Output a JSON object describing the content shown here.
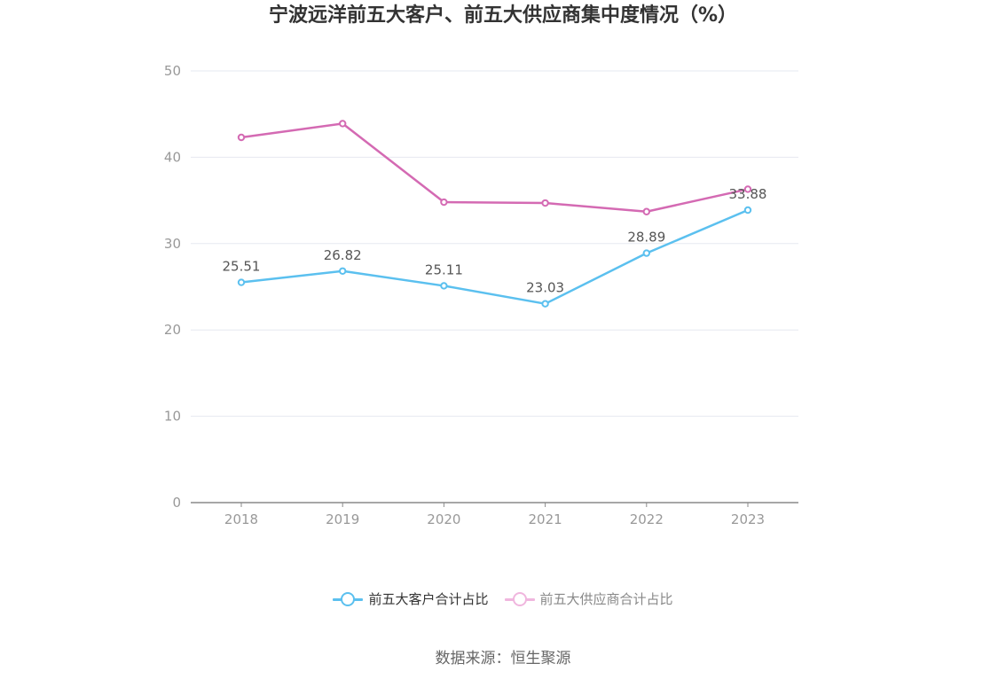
{
  "title": "宁波远洋前五大客户、前五大供应商集中度情况（%）",
  "source": "数据来源：恒生聚源",
  "colors": {
    "customers": "#5bc0ef",
    "suppliers": "#d46ab3",
    "grid": "#e6e8f0",
    "axis": "#999999"
  },
  "chart_data": {
    "type": "line",
    "title": "宁波远洋前五大客户、前五大供应商集中度情况（%）",
    "x": [
      "2018",
      "2019",
      "2020",
      "2021",
      "2022",
      "2023"
    ],
    "ylim": [
      0,
      50
    ],
    "yticks": [
      0,
      10,
      20,
      30,
      40,
      50
    ],
    "grid": true,
    "legend_position": "bottom",
    "series": [
      {
        "name": "前五大客户合计占比",
        "values": [
          25.51,
          26.82,
          25.11,
          23.03,
          28.89,
          33.88
        ],
        "labels": [
          "25.51",
          "26.82",
          "25.11",
          "23.03",
          "28.89",
          "33.88"
        ]
      },
      {
        "name": "前五大供应商合计占比",
        "values": [
          42.3,
          43.9,
          34.8,
          34.7,
          33.7,
          36.3
        ]
      }
    ]
  }
}
